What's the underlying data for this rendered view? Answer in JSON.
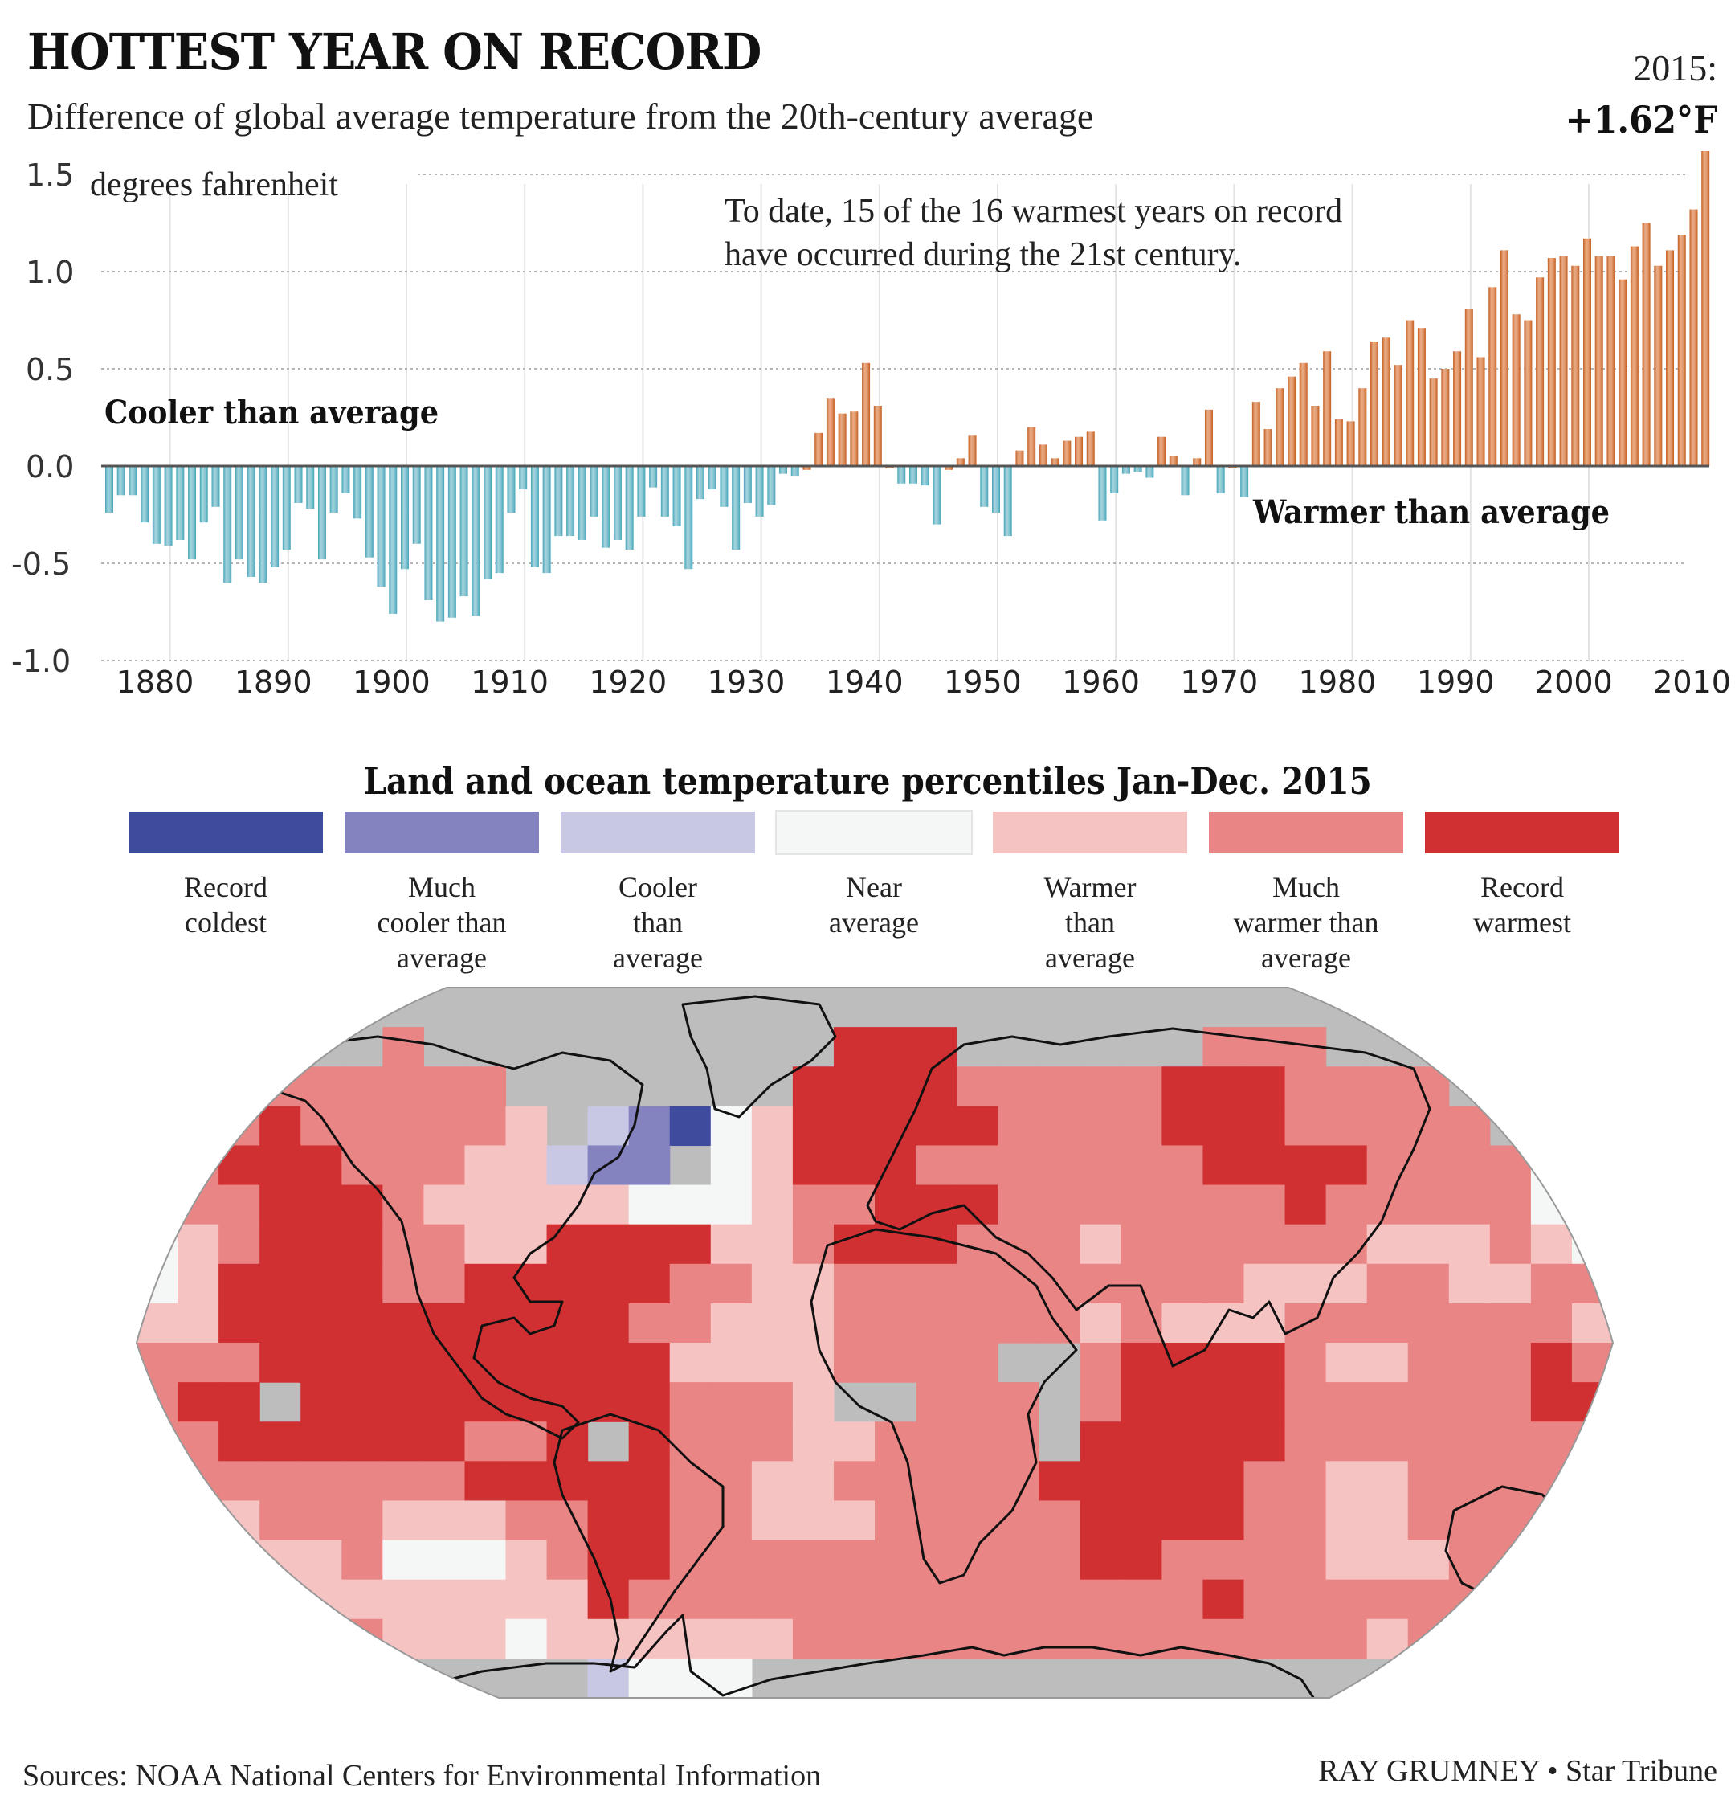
{
  "header": {
    "title": "HOTTEST YEAR ON RECORD",
    "subtitle": "Difference of global average temperature from the 20th-century average",
    "callout_year": "2015:",
    "callout_value": "+1.62°F"
  },
  "chart_data": [
    {
      "type": "bar",
      "title": "Difference of global average temperature from the 20th-century average",
      "ylabel": "degrees fahrenheit",
      "xlabel": "",
      "ylim": [
        -1.0,
        1.5
      ],
      "yticks": [
        "1.5",
        "1.0",
        "0.5",
        "0.0",
        "-0.5",
        "-1.0"
      ],
      "ytick_values": [
        1.5,
        1.0,
        0.5,
        0.0,
        -0.5,
        -1.0
      ],
      "xticks": [
        "1880",
        "1890",
        "1900",
        "1910",
        "1920",
        "1930",
        "1940",
        "1950",
        "1960",
        "1970",
        "1980",
        "1990",
        "2000",
        "2010"
      ],
      "grid": true,
      "annotations": {
        "unit": "degrees fahrenheit",
        "note": [
          "To date, 15 of the 16 warmest years on record",
          "have occurred during the 21st century."
        ],
        "cooler": "Cooler than average",
        "warmer": "Warmer than average"
      },
      "colors": {
        "positive": "#c8642a",
        "positive_light": "#e9ab85",
        "negative": "#4aa9bb",
        "negative_light": "#a6d4de"
      },
      "start_year": 1880,
      "end_year": 2015,
      "values": [
        -0.24,
        -0.15,
        -0.15,
        -0.29,
        -0.4,
        -0.41,
        -0.38,
        -0.48,
        -0.29,
        -0.21,
        -0.6,
        -0.48,
        -0.57,
        -0.6,
        -0.52,
        -0.43,
        -0.19,
        -0.22,
        -0.48,
        -0.24,
        -0.14,
        -0.27,
        -0.47,
        -0.62,
        -0.76,
        -0.53,
        -0.4,
        -0.69,
        -0.8,
        -0.78,
        -0.67,
        -0.77,
        -0.58,
        -0.55,
        -0.24,
        -0.12,
        -0.52,
        -0.55,
        -0.36,
        -0.36,
        -0.38,
        -0.26,
        -0.42,
        -0.38,
        -0.43,
        -0.26,
        -0.11,
        -0.26,
        -0.31,
        -0.53,
        -0.17,
        -0.12,
        -0.21,
        -0.43,
        -0.19,
        -0.26,
        -0.2,
        -0.04,
        -0.05,
        -0.02,
        0.17,
        0.35,
        0.27,
        0.28,
        0.53,
        0.31,
        -0.01,
        -0.09,
        -0.09,
        -0.1,
        -0.3,
        -0.02,
        0.04,
        0.16,
        -0.21,
        -0.24,
        -0.36,
        0.08,
        0.2,
        0.11,
        0.04,
        0.13,
        0.15,
        0.18,
        -0.28,
        -0.14,
        -0.04,
        -0.03,
        -0.06,
        0.15,
        0.05,
        -0.15,
        0.04,
        0.29,
        -0.14,
        -0.01,
        -0.16,
        0.33,
        0.19,
        0.4,
        0.46,
        0.53,
        0.31,
        0.59,
        0.24,
        0.23,
        0.4,
        0.64,
        0.66,
        0.52,
        0.75,
        0.71,
        0.45,
        0.5,
        0.59,
        0.81,
        0.56,
        0.92,
        1.11,
        0.78,
        0.75,
        0.97,
        1.07,
        1.08,
        1.03,
        1.17,
        1.08,
        1.08,
        0.96,
        1.13,
        1.25,
        1.03,
        1.11,
        1.19,
        1.32,
        1.62
      ]
    },
    {
      "type": "heatmap",
      "title": "Land and ocean temperature percentiles Jan-Dec. 2015",
      "legend_placement": "top",
      "categories": [
        {
          "code": 1,
          "label": "Record\ncoldest",
          "color": "#3f4b9c"
        },
        {
          "code": 2,
          "label": "Much\ncooler than\naverage",
          "color": "#8483bf"
        },
        {
          "code": 3,
          "label": "Cooler\nthan\naverage",
          "color": "#c8c8e4"
        },
        {
          "code": 4,
          "label": "Near\naverage",
          "color": "#f5f7f6"
        },
        {
          "code": 5,
          "label": "Warmer\nthan\naverage",
          "color": "#f6c3c3"
        },
        {
          "code": 6,
          "label": "Much\nwarmer than\naverage",
          "color": "#e98584"
        },
        {
          "code": 7,
          "label": "Record\nwarmest",
          "color": "#d13033"
        }
      ],
      "no_data_color": "#bdbdbd",
      "grid_note": "codes 0=no data, 1-7 = legend categories; rows from north (top) to south, columns from 180W eastward",
      "grid": [
        "000000000000000000000000000000000000",
        "000000600000000007770000006660000000",
        "005666666000000077776666677766660000",
        "066766666503214577777666677766666000",
        "667776665532204577766666667777666640",
        "666777655555444566777666666676666644",
        "456777665577775567776665666666555654",
        "457777667777766556666666666555665566",
        "557777777777665556666665655566666665",
        "666777777777755556666006777765566676",
        "677077777777766650066606777766666677",
        "667777776670766655666607777766666666",
        "566666667777766556666677777665566666",
        "445666555667766555666667777665566666",
        "445556444567766666666667766665556666",
        "444555555557666666666666667666666664",
        "333456555455555566666666666666566665",
        "000000000003444000000000000000000000"
      ]
    }
  ],
  "map": {
    "title": "Land and ocean temperature percentiles Jan-Dec. 2015"
  },
  "footer": {
    "sources": "Sources: NOAA National Centers for Environmental Information",
    "credit": "RAY GRUMNEY • Star Tribune"
  }
}
